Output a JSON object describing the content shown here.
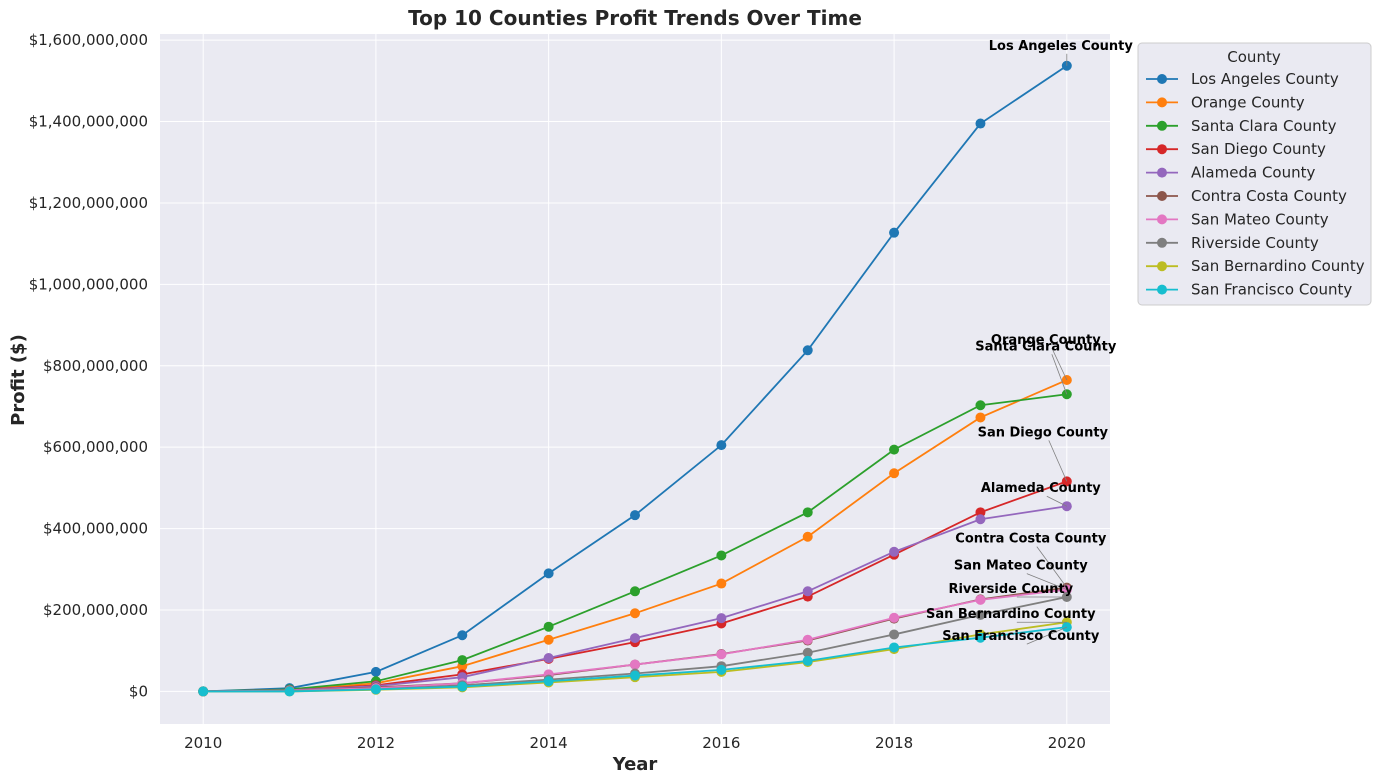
{
  "chart_data": {
    "type": "line",
    "title": "Top 10 Counties Profit Trends Over Time",
    "xlabel": "Year",
    "ylabel": "Profit ($)",
    "xlim": [
      2009.5,
      2020.5
    ],
    "ylim": [
      -80000000,
      1615000000
    ],
    "x_ticks": [
      2010,
      2012,
      2014,
      2016,
      2018,
      2020
    ],
    "y_ticks": [
      0,
      200000000,
      400000000,
      600000000,
      800000000,
      1000000000,
      1200000000,
      1400000000,
      1600000000
    ],
    "y_tick_labels": [
      "$0",
      "$200,000,000",
      "$400,000,000",
      "$600,000,000",
      "$800,000,000",
      "$1,000,000,000",
      "$1,200,000,000",
      "$1,400,000,000",
      "$1,600,000,000"
    ],
    "grid": true,
    "legend_title": "County",
    "legend_position": "upper-right-outside",
    "x": [
      2010,
      2011,
      2012,
      2013,
      2014,
      2015,
      2016,
      2017,
      2018,
      2019,
      2020
    ],
    "series": [
      {
        "name": "Los Angeles County",
        "color": "#1f77b4",
        "values": [
          0,
          8000000,
          48000000,
          138000000,
          290000000,
          433000000,
          605000000,
          838000000,
          1127000000,
          1395000000,
          1537000000
        ]
      },
      {
        "name": "Orange County",
        "color": "#ff7f0e",
        "values": [
          0,
          3000000,
          20000000,
          62000000,
          127000000,
          192000000,
          265000000,
          380000000,
          536000000,
          673000000,
          765000000
        ]
      },
      {
        "name": "Santa Clara County",
        "color": "#2ca02c",
        "values": [
          0,
          5000000,
          25000000,
          77000000,
          159000000,
          246000000,
          334000000,
          440000000,
          594000000,
          703000000,
          730000000
        ]
      },
      {
        "name": "San Diego County",
        "color": "#d62728",
        "values": [
          0,
          3000000,
          15000000,
          42000000,
          80000000,
          121000000,
          167000000,
          233000000,
          336000000,
          440000000,
          516000000
        ]
      },
      {
        "name": "Alameda County",
        "color": "#9467bd",
        "values": [
          0,
          3000000,
          13000000,
          35000000,
          82000000,
          131000000,
          180000000,
          246000000,
          343000000,
          423000000,
          455000000
        ]
      },
      {
        "name": "Contra Costa County",
        "color": "#8c564b",
        "values": [
          0,
          2000000,
          10000000,
          20000000,
          40000000,
          66000000,
          92000000,
          125000000,
          179000000,
          226000000,
          255000000
        ]
      },
      {
        "name": "San Mateo County",
        "color": "#e377c2",
        "values": [
          0,
          2000000,
          8000000,
          20000000,
          42000000,
          66000000,
          91000000,
          127000000,
          181000000,
          225000000,
          250000000
        ]
      },
      {
        "name": "Riverside County",
        "color": "#7f7f7f",
        "values": [
          0,
          1000000,
          5000000,
          15000000,
          29000000,
          44000000,
          62000000,
          95000000,
          140000000,
          188000000,
          232000000
        ]
      },
      {
        "name": "San Bernardino County",
        "color": "#bcbd22",
        "values": [
          0,
          0,
          4000000,
          10000000,
          22000000,
          35000000,
          48000000,
          72000000,
          104000000,
          140000000,
          170000000
        ]
      },
      {
        "name": "San Francisco County",
        "color": "#17becf",
        "values": [
          0,
          0,
          5000000,
          12000000,
          25000000,
          39000000,
          53000000,
          75000000,
          108000000,
          132000000,
          158000000
        ]
      }
    ],
    "annotations": [
      {
        "text": "Los Angeles County",
        "series": "Los Angeles County"
      },
      {
        "text": "Orange County",
        "series": "Orange County"
      },
      {
        "text": "Santa Clara County",
        "series": "Santa Clara County"
      },
      {
        "text": "San Diego County",
        "series": "San Diego County"
      },
      {
        "text": "Alameda County",
        "series": "Alameda County"
      },
      {
        "text": "Contra Costa County",
        "series": "Contra Costa County"
      },
      {
        "text": "San Mateo County",
        "series": "San Mateo County"
      },
      {
        "text": "Riverside County",
        "series": "Riverside County"
      },
      {
        "text": "San Bernardino County",
        "series": "San Bernardino County"
      },
      {
        "text": "San Francisco County",
        "series": "San Francisco County"
      }
    ],
    "colors": {
      "plot_background": "#eaeaf2",
      "grid": "#ffffff"
    }
  }
}
